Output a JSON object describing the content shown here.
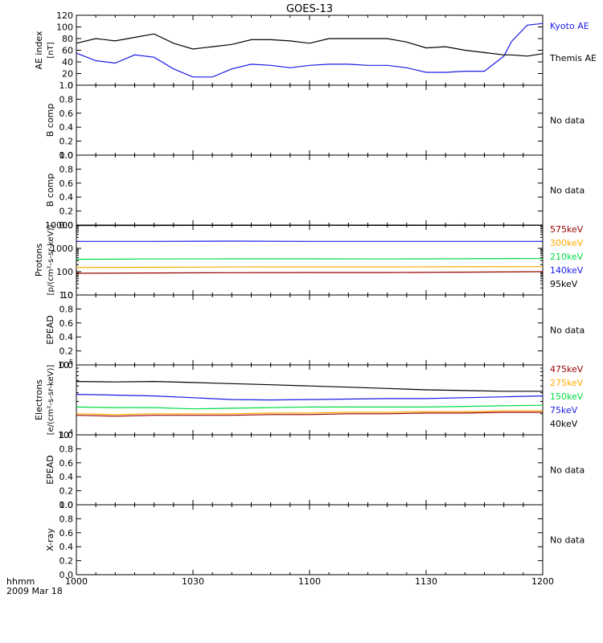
{
  "title": "GOES-13",
  "time_axis": {
    "label_line1": "hhmm",
    "label_line2": "2009 Mar 18",
    "ticks": [
      "1000",
      "1030",
      "1100",
      "1130",
      "1200"
    ]
  },
  "colors": {
    "axis": "#000000",
    "black": "#000000",
    "blue": "#1a1ae6",
    "green": "#00dd44",
    "orange": "#ffaa00",
    "darkred": "#990000"
  },
  "chart_data": [
    {
      "type": "line",
      "id": "ae",
      "ylabel": "AE index",
      "unit_label": "[nT]",
      "ylim": [
        0,
        120
      ],
      "yscale": "linear",
      "yticks": [
        0,
        20,
        40,
        60,
        80,
        100,
        120
      ],
      "x_unit": "minutes after 1000 UT",
      "x": [
        0,
        5,
        10,
        15,
        20,
        25,
        30,
        35,
        40,
        45,
        50,
        55,
        60,
        65,
        70,
        75,
        80,
        85,
        90,
        95,
        100,
        105,
        110,
        112,
        116,
        120
      ],
      "series": [
        {
          "name": "Kyoto AE",
          "color": "blue",
          "values": [
            55,
            42,
            38,
            52,
            48,
            28,
            14,
            14,
            28,
            36,
            34,
            30,
            34,
            36,
            36,
            34,
            34,
            30,
            22,
            22,
            24,
            24,
            50,
            75,
            103,
            106
          ]
        },
        {
          "name": "Themis AE",
          "color": "black",
          "values": [
            72,
            80,
            76,
            82,
            88,
            72,
            62,
            66,
            70,
            78,
            78,
            76,
            72,
            80,
            80,
            80,
            80,
            74,
            64,
            66,
            60,
            56,
            52,
            52,
            50,
            54
          ]
        }
      ]
    },
    {
      "type": "line",
      "id": "bcomp1",
      "ylabel": "B comp",
      "ylim": [
        0,
        1
      ],
      "yscale": "linear",
      "yticks": [
        "0.0",
        "0.2",
        "0.4",
        "0.6",
        "0.8",
        "1.0"
      ],
      "note": "No data",
      "series": []
    },
    {
      "type": "line",
      "id": "bcomp2",
      "ylabel": "B comp",
      "ylim": [
        0,
        1
      ],
      "yscale": "linear",
      "yticks": [
        "0.0",
        "0.2",
        "0.4",
        "0.6",
        "0.8",
        "1.0"
      ],
      "note": "No data",
      "series": []
    },
    {
      "type": "line",
      "id": "protons",
      "ylabel": "Protons",
      "unit_label": "[p/(cm²-s-sr-keV)]",
      "ylim": [
        10,
        10000
      ],
      "yscale": "log",
      "yticks": [
        "10",
        "100",
        "1000",
        "10000"
      ],
      "x_unit": "minutes after 1000 UT",
      "x": [
        0,
        20,
        40,
        60,
        80,
        100,
        120
      ],
      "series": [
        {
          "name": "575keV",
          "color": "darkred",
          "values": [
            85,
            88,
            90,
            92,
            92,
            95,
            100
          ]
        },
        {
          "name": "300keV",
          "color": "orange",
          "values": [
            150,
            155,
            158,
            160,
            160,
            162,
            165
          ]
        },
        {
          "name": "210keV",
          "color": "green",
          "values": [
            340,
            350,
            355,
            355,
            350,
            360,
            365
          ]
        },
        {
          "name": "140keV",
          "color": "blue",
          "values": [
            2000,
            2000,
            2050,
            2000,
            2000,
            2000,
            2000
          ]
        },
        {
          "name": "95keV",
          "color": "black",
          "values": [
            9500,
            9600,
            9700,
            9800,
            9700,
            9800,
            9800
          ]
        }
      ]
    },
    {
      "type": "line",
      "id": "epead1",
      "ylabel": "EPEAD",
      "ylim": [
        0,
        1
      ],
      "yscale": "linear",
      "yticks": [
        "0.0",
        "0.2",
        "0.4",
        "0.6",
        "0.8",
        "1.0"
      ],
      "note": "No data",
      "series": []
    },
    {
      "type": "line",
      "id": "electrons",
      "ylabel": "Electrons",
      "unit_label": "[e/(cm²-s-sr-keV)]",
      "ylim": [
        10000,
        100000
      ],
      "yscale": "log",
      "yticks": [
        "10^4",
        "10^5"
      ],
      "x_unit": "minutes after 1000 UT",
      "x": [
        0,
        10,
        20,
        30,
        40,
        50,
        60,
        70,
        80,
        90,
        100,
        110,
        120
      ],
      "series": [
        {
          "name": "475keV",
          "color": "darkred",
          "values": [
            19000,
            18500,
            19000,
            19000,
            19000,
            19500,
            19500,
            20000,
            20000,
            20500,
            20500,
            21000,
            21000
          ]
        },
        {
          "name": "275keV",
          "color": "orange",
          "values": [
            20000,
            19500,
            20000,
            20000,
            20000,
            20500,
            20500,
            21000,
            21000,
            21500,
            21500,
            22000,
            22000
          ]
        },
        {
          "name": "150keV",
          "color": "green",
          "values": [
            25000,
            24500,
            24500,
            23500,
            24000,
            24500,
            25000,
            25000,
            25000,
            25000,
            25500,
            26000,
            26500
          ]
        },
        {
          "name": "75keV",
          "color": "blue",
          "values": [
            38000,
            37000,
            36000,
            34000,
            32000,
            31500,
            32000,
            32500,
            33000,
            33000,
            34000,
            35000,
            36000
          ]
        },
        {
          "name": "40keV",
          "color": "black",
          "values": [
            58000,
            57000,
            58000,
            56000,
            54000,
            52000,
            50000,
            48000,
            46000,
            44000,
            43000,
            42000,
            42000
          ]
        }
      ]
    },
    {
      "type": "line",
      "id": "epead2",
      "ylabel": "EPEAD",
      "ylim": [
        0,
        1
      ],
      "yscale": "linear",
      "yticks": [
        "0.0",
        "0.2",
        "0.4",
        "0.6",
        "0.8",
        "1.0"
      ],
      "note": "No data",
      "series": []
    },
    {
      "type": "line",
      "id": "xray",
      "ylabel": "X-ray",
      "ylim": [
        0,
        1
      ],
      "yscale": "linear",
      "yticks": [
        "0.0",
        "0.2",
        "0.4",
        "0.6",
        "0.8",
        "1.0"
      ],
      "note": "No data",
      "series": []
    }
  ]
}
